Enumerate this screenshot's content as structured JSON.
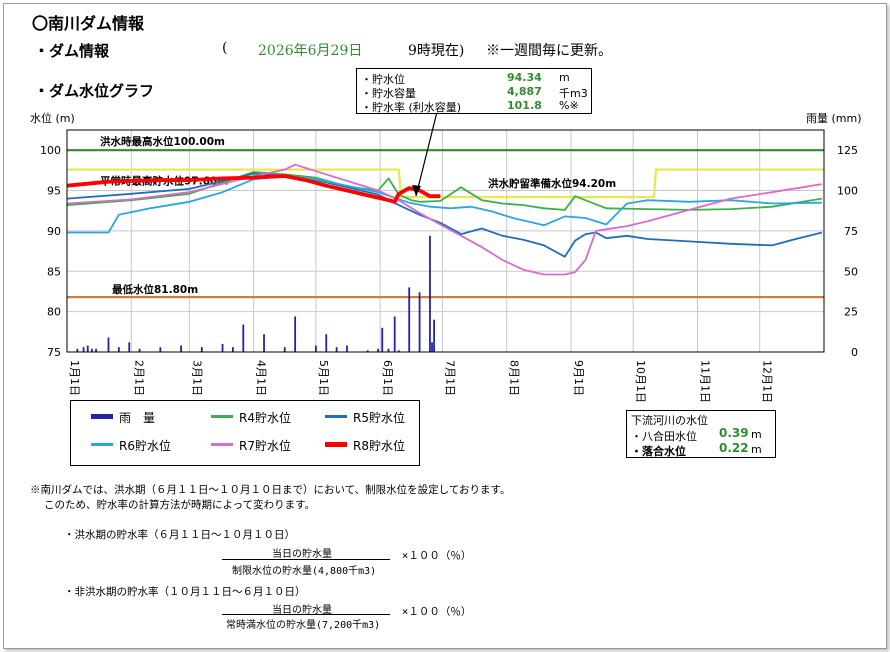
{
  "header": {
    "title": "〇南川ダム情報",
    "dam_info_label": "・ダム情報",
    "date_open": "(",
    "date": "2026年6月29日",
    "time_text": "9時現在)",
    "update_note": "※一週間毎に更新。",
    "graph_label": "・ダム水位グラフ"
  },
  "current_box": {
    "rows": [
      {
        "label": "・貯水位",
        "value": "94.34",
        "unit": "m"
      },
      {
        "label": "・貯水容量",
        "value": "4,887",
        "unit": "千m3"
      },
      {
        "label": "・貯水率 (利水容量)",
        "value": "101.8",
        "unit": "%※"
      }
    ]
  },
  "chart_data": {
    "type": "line",
    "ylabel_left": "水位 (m)",
    "ylabel_right": "雨量 (mm)",
    "y_left_range": [
      75,
      102.5
    ],
    "y_left_ticks": [
      "75",
      "80",
      "85",
      "90",
      "95",
      "100"
    ],
    "y_right_ticks": [
      "0",
      "25",
      "50",
      "75",
      "100",
      "125"
    ],
    "x_ticks": [
      "1月1日",
      "2月1日",
      "3月1日",
      "4月1日",
      "5月1日",
      "6月1日",
      "7月1日",
      "8月1日",
      "9月1日",
      "10月1日",
      "11月1日",
      "12月1日"
    ],
    "reference_lines": [
      {
        "label": "洪水時最高水位100.00m",
        "value": 100.0,
        "color": "#2e8b2e"
      },
      {
        "label": "平常時最高貯水位97.60m",
        "value": 97.6,
        "color": "#e8e84a"
      },
      {
        "label": "洪水貯留準備水位94.20m",
        "value": 94.2,
        "color": "#e8e84a"
      },
      {
        "label": "最低水位81.80m",
        "value": 81.8,
        "color": "#c8803a"
      }
    ],
    "series": [
      {
        "name": "R4貯水位",
        "color": "#3cb04a",
        "x": [
          0,
          31,
          59,
          75,
          90,
          105,
          120,
          135,
          150,
          155,
          160,
          166,
          170,
          180,
          190,
          200,
          210,
          220,
          230,
          240,
          245,
          260,
          280,
          300,
          320,
          340,
          364
        ],
        "y": [
          93.2,
          93.8,
          94.6,
          96.0,
          97.3,
          97.0,
          96.6,
          95.5,
          95.0,
          96.5,
          94.5,
          93.8,
          93.6,
          93.7,
          95.4,
          93.8,
          93.4,
          93.2,
          92.8,
          92.6,
          94.3,
          92.8,
          92.7,
          92.6,
          92.7,
          93.0,
          94.0
        ]
      },
      {
        "name": "R5貯水位",
        "color": "#1f6fb8",
        "x": [
          0,
          31,
          59,
          90,
          105,
          120,
          135,
          150,
          160,
          170,
          180,
          190,
          200,
          210,
          220,
          230,
          240,
          245,
          250,
          255,
          260,
          270,
          280,
          300,
          320,
          340,
          350,
          364
        ],
        "y": [
          94.0,
          94.6,
          95.2,
          97.1,
          96.8,
          96.3,
          95.4,
          94.5,
          93.2,
          92.0,
          91.0,
          89.6,
          90.3,
          89.4,
          88.9,
          88.2,
          86.8,
          88.8,
          89.6,
          89.8,
          89.1,
          89.4,
          89.0,
          88.7,
          88.4,
          88.2,
          88.9,
          89.8
        ]
      },
      {
        "name": "R6貯水位",
        "color": "#29a8e0",
        "x": [
          0,
          20,
          25,
          40,
          59,
          75,
          90,
          105,
          120,
          135,
          150,
          165,
          175,
          185,
          195,
          205,
          215,
          230,
          240,
          250,
          260,
          270,
          280,
          300,
          320,
          340,
          364
        ],
        "y": [
          89.8,
          89.8,
          92.0,
          92.8,
          93.6,
          94.8,
          96.4,
          96.8,
          96.4,
          95.6,
          94.8,
          93.5,
          93.0,
          92.8,
          93.0,
          92.4,
          91.6,
          90.7,
          91.8,
          91.6,
          90.8,
          93.4,
          93.8,
          93.6,
          93.8,
          93.4,
          93.5
        ]
      },
      {
        "name": "R7貯水位",
        "color": "#d86ad0",
        "x": [
          0,
          31,
          59,
          90,
          105,
          110,
          120,
          135,
          150,
          160,
          170,
          180,
          190,
          200,
          210,
          220,
          230,
          240,
          245,
          250,
          255,
          260,
          270,
          280,
          300,
          320,
          340,
          364
        ],
        "y": [
          93.4,
          93.9,
          94.8,
          96.8,
          97.6,
          98.2,
          97.4,
          96.2,
          95.0,
          93.8,
          92.2,
          90.8,
          89.4,
          88.0,
          86.4,
          85.2,
          84.6,
          84.6,
          84.9,
          86.4,
          90.0,
          90.2,
          90.6,
          91.2,
          92.6,
          94.0,
          94.8,
          95.8
        ]
      },
      {
        "name": "R8貯水位",
        "color": "#ff0000",
        "x": [
          0,
          20,
          31,
          45,
          59,
          75,
          90,
          105,
          115,
          125,
          135,
          145,
          152,
          155,
          158,
          160,
          165,
          170,
          175,
          180
        ],
        "y": [
          95.6,
          96.1,
          96.2,
          96.3,
          96.3,
          96.5,
          96.6,
          96.8,
          96.3,
          95.6,
          95.0,
          94.4,
          94.0,
          93.8,
          93.6,
          94.6,
          95.3,
          95.0,
          94.3,
          94.3
        ]
      }
    ],
    "rainfall": {
      "name": "雨量",
      "color": "#2222aa",
      "x": [
        5,
        8,
        10,
        12,
        14,
        20,
        25,
        30,
        35,
        45,
        55,
        65,
        75,
        80,
        85,
        95,
        105,
        110,
        120,
        125,
        130,
        135,
        145,
        150,
        152,
        155,
        158,
        160,
        165,
        170,
        175,
        176,
        177
      ],
      "values": [
        2,
        3,
        4,
        2,
        2,
        9,
        3,
        6,
        2,
        3,
        4,
        3,
        5,
        3,
        17,
        11,
        3,
        22,
        4,
        11,
        3,
        4,
        1,
        2,
        15,
        2,
        22,
        1,
        40,
        37,
        72,
        6,
        20
      ]
    }
  },
  "legend": {
    "rain_label": "雨　量",
    "r4": "R4貯水位",
    "r5": "R5貯水位",
    "r6": "R6貯水位",
    "r7": "R7貯水位",
    "r8": "R8貯水位"
  },
  "river": {
    "title": "下流河川の水位",
    "rows": [
      {
        "label": "・八合田水位",
        "value": "0.39",
        "unit": "m"
      },
      {
        "label": "・落合水位",
        "value": "0.22",
        "unit": "m"
      }
    ]
  },
  "notes": {
    "line1": "※南川ダムでは、洪水期（６月１１日～１０月１０日まで）において、制限水位を設定しております。",
    "line2": "このため、貯水率の計算方法が時期によって変わります。",
    "flood_title": "・洪水期の貯水率（６月１１日～１０月１０日）",
    "flood_num": "当日の貯水量",
    "flood_den": "制限水位の貯水量(4,800千m3)",
    "flood_mult": "×１００（％）",
    "nonflood_title": "・非洪水期の貯水率（１０月１１日～６月１０日）",
    "nonflood_num": "当日の貯水量",
    "nonflood_den": "常時満水位の貯水量(7,200千m3)",
    "nonflood_mult": "×１００（％）"
  }
}
